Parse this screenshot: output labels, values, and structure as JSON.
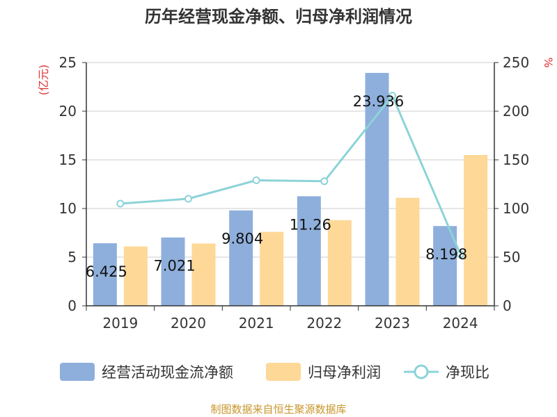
{
  "chart_data": {
    "type": "bar",
    "title": "历年经营现金净额、归母净利润情况",
    "categories": [
      "2019",
      "2020",
      "2021",
      "2022",
      "2023",
      "2024"
    ],
    "series": [
      {
        "name": "经营活动现金流净额",
        "type": "bar",
        "axis": "left",
        "color": "#8eafdc",
        "values": [
          6.425,
          7.021,
          9.804,
          11.26,
          23.936,
          8.198
        ]
      },
      {
        "name": "归母净利润",
        "type": "bar",
        "axis": "left",
        "color": "#fdd897",
        "values": [
          6.1,
          6.4,
          7.6,
          8.8,
          11.1,
          15.5
        ]
      },
      {
        "name": "净现比",
        "type": "line",
        "axis": "right",
        "color": "#8cd3d8",
        "values": [
          105,
          110,
          129,
          128,
          216,
          53
        ]
      }
    ],
    "data_labels": [
      "6.425",
      "7.021",
      "9.804",
      "11.26",
      "23.936",
      "8.198"
    ],
    "y_left": {
      "label": "(亿元)",
      "ylim": [
        0,
        25
      ],
      "ticks": [
        "0",
        "5",
        "10",
        "15",
        "20",
        "25"
      ]
    },
    "y_right": {
      "label": "%",
      "ylim": [
        0,
        250
      ],
      "ticks": [
        "0",
        "50",
        "100",
        "150",
        "200",
        "250"
      ]
    },
    "grid": true,
    "legend_position": "bottom"
  },
  "source": "制图数据来自恒生聚源数据库"
}
